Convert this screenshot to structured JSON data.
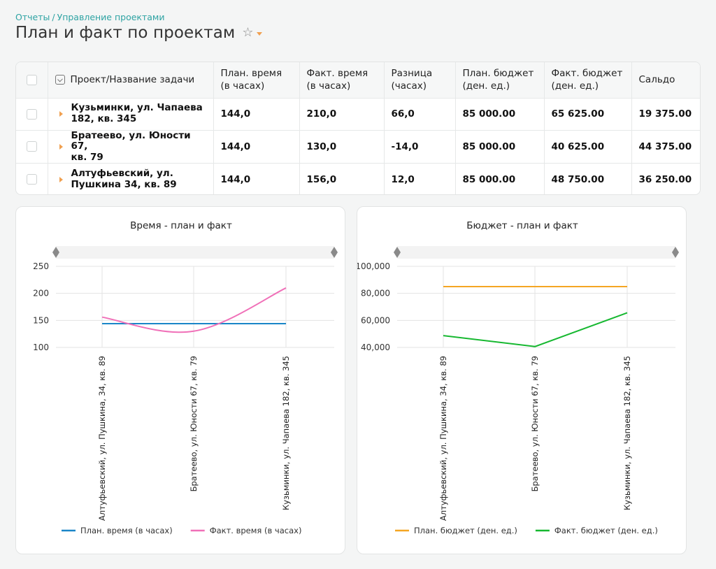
{
  "breadcrumb": {
    "root": "Отчеты",
    "current": "Управление проектами"
  },
  "page": {
    "title": "План и факт по проектам"
  },
  "table": {
    "headers": {
      "name": "Проект/Название задачи",
      "plan_time_1": "План. время",
      "plan_time_2": "(в часах)",
      "fact_time_1": "Факт. время",
      "fact_time_2": "(в часах)",
      "diff_1": "Разница",
      "diff_2": "(часах)",
      "plan_budget_1": "План. бюджет",
      "plan_budget_2": "(ден. ед.)",
      "fact_budget_1": "Факт. бюджет",
      "fact_budget_2": "(ден. ед.)",
      "saldo": "Сальдо"
    },
    "rows": [
      {
        "name_1": "Кузьминки, ул. Чапаева",
        "name_2": "182, кв. 345",
        "plan_time": "144,0",
        "fact_time": "210,0",
        "diff": "66,0",
        "plan_budget": "85 000.00",
        "fact_budget": "65 625.00",
        "saldo": "19 375.00"
      },
      {
        "name_1": "Братеево, ул. Юности 67,",
        "name_2": "кв. 79",
        "plan_time": "144,0",
        "fact_time": "130,0",
        "diff": "-14,0",
        "plan_budget": "85 000.00",
        "fact_budget": "40 625.00",
        "saldo": "44 375.00"
      },
      {
        "name_1": "Алтуфьевский, ул.",
        "name_2": "Пушкина 34, кв. 89",
        "plan_time": "144,0",
        "fact_time": "156,0",
        "diff": "12,0",
        "plan_budget": "85 000.00",
        "fact_budget": "48 750.00",
        "saldo": "36 250.00"
      }
    ]
  },
  "chart_data": [
    {
      "type": "line",
      "title": "Время - план и факт",
      "categories": [
        "Алтуфьевский, ул. Пушкина, 34, кв. 89",
        "Братеево, ул. Юности 67, кв. 79",
        "Кузьминки, ул. Чапаева 182, кв. 345"
      ],
      "yticks": [
        "250",
        "200",
        "150",
        "100"
      ],
      "ylim": [
        100,
        250
      ],
      "grid": true,
      "legend_position": "bottom",
      "series": [
        {
          "name": "План. время (в часах)",
          "values": [
            144,
            144,
            144
          ],
          "color": "#1a86c8",
          "smooth": false
        },
        {
          "name": "Факт. время (в часах)",
          "values": [
            156,
            130,
            210
          ],
          "color": "#f070b8",
          "smooth": true
        }
      ]
    },
    {
      "type": "line",
      "title": "Бюджет - план и факт",
      "categories": [
        "Алтуфьевский, ул. Пушкина, 34, кв. 89",
        "Братеево, ул. Юности 67, кв. 79",
        "Кузьминки, ул. Чапаева 182, кв. 345"
      ],
      "yticks": [
        "100,000",
        "80,000",
        "60,000",
        "40,000"
      ],
      "ylim": [
        40000,
        100000
      ],
      "grid": true,
      "legend_position": "bottom",
      "series": [
        {
          "name": "План. бюджет (ден. ед.)",
          "values": [
            85000,
            85000,
            85000
          ],
          "color": "#f5a623",
          "smooth": false
        },
        {
          "name": "Факт. бюджет (ден. ед.)",
          "values": [
            48750,
            40625,
            65625
          ],
          "color": "#16b830",
          "smooth": false
        }
      ]
    }
  ]
}
